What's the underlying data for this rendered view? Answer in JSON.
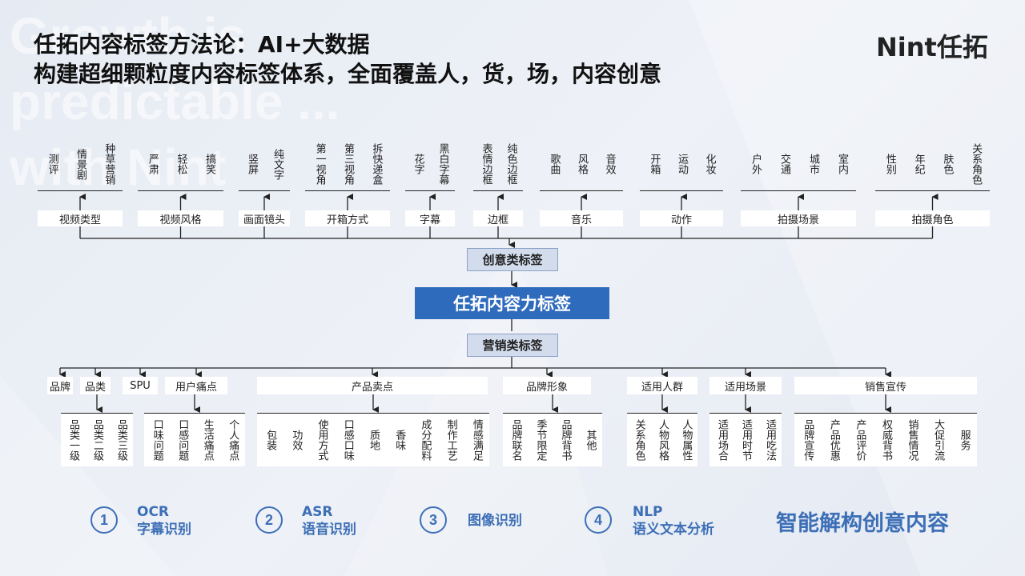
{
  "background_text": "Growth is\npredictable ...\nwith Nint",
  "title": {
    "line1": "任拓内容标签方法论：AI+大数据",
    "line2": "构建超细颗粒度内容标签体系，全面覆盖人，货，场，内容创意"
  },
  "logo": "Nint任拓",
  "center_label": "任拓内容力标签",
  "creative": {
    "label": "创意类标签",
    "categories": [
      {
        "name": "视频类型",
        "items": [
          "测评",
          "情景剧",
          "种草营销"
        ]
      },
      {
        "name": "视频风格",
        "items": [
          "严肃",
          "轻松",
          "搞笑"
        ]
      },
      {
        "name": "画面镜头",
        "items": [
          "竖屏",
          "纯文字"
        ]
      },
      {
        "name": "开箱方式",
        "items": [
          "第一视角",
          "第三视角",
          "拆快递盒"
        ]
      },
      {
        "name": "字幕",
        "items": [
          "花字",
          "黑白字幕"
        ]
      },
      {
        "name": "边框",
        "items": [
          "表情边框",
          "纯色边框"
        ]
      },
      {
        "name": "音乐",
        "items": [
          "歌曲",
          "风格",
          "音效"
        ]
      },
      {
        "name": "动作",
        "items": [
          "开箱",
          "运动",
          "化妆"
        ]
      },
      {
        "name": "拍摄场景",
        "items": [
          "户外",
          "交通",
          "城市",
          "室内"
        ]
      },
      {
        "name": "拍摄角色",
        "items": [
          "性别",
          "年纪",
          "肤色",
          "关系角色"
        ]
      }
    ]
  },
  "marketing": {
    "label": "营销类标签",
    "categories": [
      {
        "name": "品牌",
        "items": []
      },
      {
        "name": "品类",
        "items": [
          "品类一级",
          "品类二级",
          "品类三级"
        ]
      },
      {
        "name": "SPU",
        "items": []
      },
      {
        "name": "用户痛点",
        "items": [
          "口味问题",
          "口感问题",
          "生活痛点",
          "个人痛点"
        ]
      },
      {
        "name": "产品卖点",
        "items": [
          "包装",
          "功效",
          "使用方式",
          "口感口味",
          "质地",
          "香味",
          "成分配料",
          "制作工艺",
          "情感满足"
        ]
      },
      {
        "name": "品牌形象",
        "items": [
          "品牌联名",
          "季节限定",
          "品牌背书",
          "其他"
        ]
      },
      {
        "name": "适用人群",
        "items": [
          "关系角色",
          "人物风格",
          "人物属性"
        ]
      },
      {
        "name": "适用场景",
        "items": [
          "适用场合",
          "适用时节",
          "适用吃法"
        ]
      },
      {
        "name": "销售宣传",
        "items": [
          "品牌宣传",
          "产品优惠",
          "产品评价",
          "权威背书",
          "销售情况",
          "大促引流",
          "服务"
        ]
      }
    ]
  },
  "methods": [
    {
      "num": "1",
      "line1": "OCR",
      "line2": "字幕识别"
    },
    {
      "num": "2",
      "line1": "ASR",
      "line2": "语音识别"
    },
    {
      "num": "3",
      "line1": "图像识别",
      "line2": ""
    },
    {
      "num": "4",
      "line1": "NLP",
      "line2": "语义文本分析"
    }
  ],
  "slogan": "智能解构创意内容",
  "colors": {
    "accent": "#2f6bbd",
    "text_blue": "#3d6fb6",
    "mid_box": "#d2dcec"
  }
}
